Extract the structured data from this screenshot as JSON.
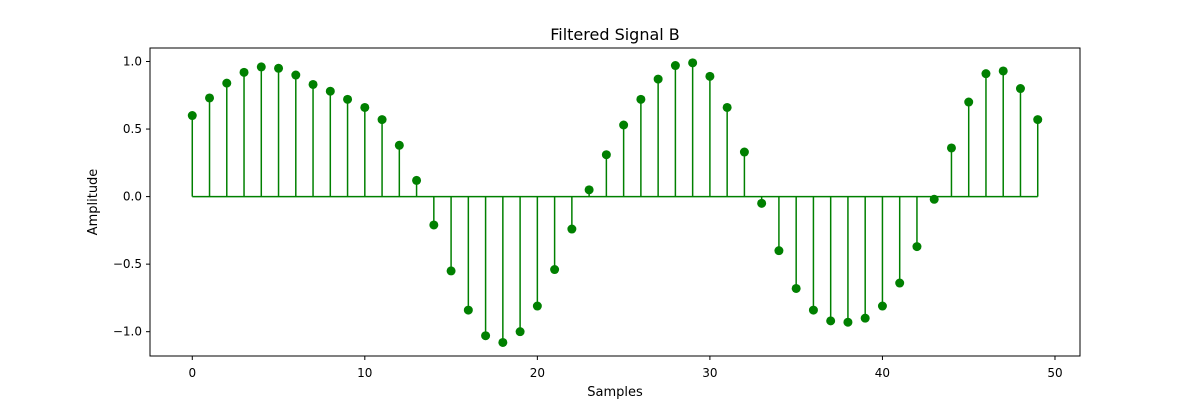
{
  "chart_data": {
    "type": "stem",
    "title": "Filtered Signal B",
    "xlabel": "Samples",
    "ylabel": "Amplitude",
    "xlim": [
      -2.45,
      51.45
    ],
    "ylim": [
      -1.18,
      1.1
    ],
    "xticks": [
      0,
      10,
      20,
      30,
      40,
      50
    ],
    "xtick_labels": [
      "0",
      "10",
      "20",
      "30",
      "40",
      "50"
    ],
    "yticks": [
      -1.0,
      -0.5,
      0.0,
      0.5,
      1.0
    ],
    "ytick_labels": [
      "−1.0",
      "−0.5",
      "0.0",
      "0.5",
      "1.0"
    ],
    "grid": false,
    "color": "#008000",
    "series": [
      {
        "x": [
          0,
          1,
          2,
          3,
          4,
          5,
          6,
          7,
          8,
          9,
          10,
          11,
          12,
          13,
          14,
          15,
          16,
          17,
          18,
          19,
          20,
          21,
          22,
          23,
          24,
          25,
          26,
          27,
          28,
          29,
          30,
          31,
          32,
          33,
          34,
          35,
          36,
          37,
          38,
          39,
          40,
          41,
          42,
          43,
          44,
          45,
          46,
          47,
          48,
          49
        ],
        "values": [
          0.6,
          0.73,
          0.84,
          0.92,
          0.96,
          0.95,
          0.9,
          0.83,
          0.78,
          0.72,
          0.66,
          0.57,
          0.38,
          0.12,
          -0.21,
          -0.55,
          -0.84,
          -1.03,
          -1.08,
          -1.0,
          -0.81,
          -0.54,
          -0.24,
          0.05,
          0.31,
          0.53,
          0.72,
          0.87,
          0.97,
          0.99,
          0.89,
          0.66,
          0.33,
          -0.05,
          -0.4,
          -0.68,
          -0.84,
          -0.92,
          -0.93,
          -0.9,
          -0.81,
          -0.64,
          -0.37,
          -0.02,
          0.36,
          0.7,
          0.91,
          0.93,
          0.8,
          0.57
        ]
      }
    ]
  }
}
